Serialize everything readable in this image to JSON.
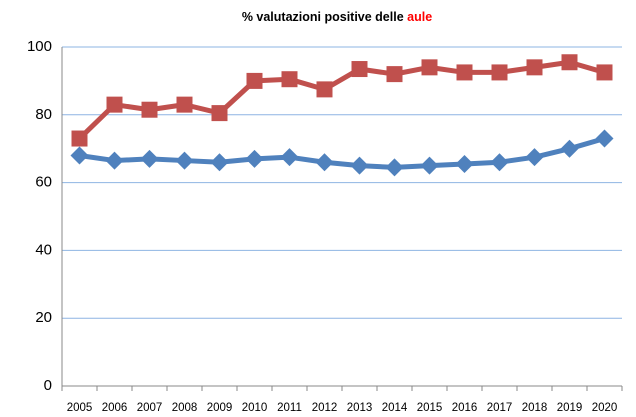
{
  "chart_data": {
    "type": "line",
    "title": {
      "text": "% valutazioni positive delle",
      "highlight": "aule",
      "highlight_color": "#ff0000"
    },
    "categories": [
      "2005",
      "2006",
      "2007",
      "2008",
      "2009",
      "2010",
      "2011",
      "2012",
      "2013",
      "2014",
      "2015",
      "2016",
      "2017",
      "2018",
      "2019",
      "2020"
    ],
    "series": [
      {
        "color": "#c0504d",
        "marker": "square",
        "values": [
          73,
          83,
          81.5,
          83,
          80.5,
          90,
          90.5,
          87.5,
          93.5,
          92,
          94,
          92.5,
          92.5,
          94,
          95.5,
          92.5
        ]
      },
      {
        "color": "#4f81bd",
        "marker": "diamond",
        "values": [
          68,
          66.5,
          67,
          66.5,
          66,
          67,
          67.5,
          66,
          65,
          64.5,
          65,
          65.5,
          66,
          67.5,
          70,
          73
        ]
      }
    ],
    "ylim": [
      0,
      100
    ],
    "yticks": [
      0,
      20,
      40,
      60,
      80,
      100
    ],
    "grid": true
  }
}
